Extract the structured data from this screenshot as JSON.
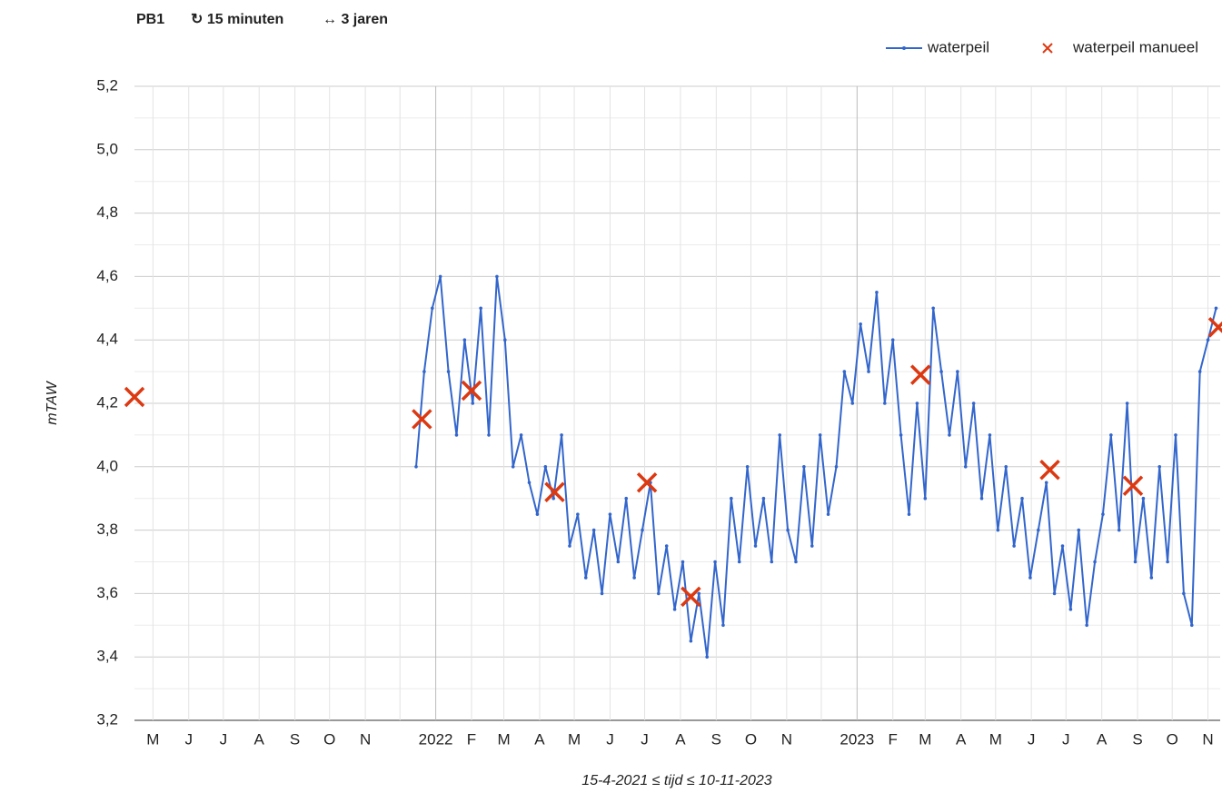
{
  "chart_data": {
    "type": "line",
    "title": "PB1",
    "subtitle_interval": "↻ 15 minuten",
    "subtitle_range": "↔ 3 jaren",
    "xlabel": "15-4-2021 ≤ tijd ≤ 10-11-2023",
    "ylabel": "mTAW",
    "xlim": [
      "2021-04-15",
      "2023-11-10"
    ],
    "ylim": [
      3.2,
      5.2
    ],
    "yticks": [
      {
        "value": 3.2,
        "label": "3,2"
      },
      {
        "value": 3.4,
        "label": "3,4"
      },
      {
        "value": 3.6,
        "label": "3,6"
      },
      {
        "value": 3.8,
        "label": "3,8"
      },
      {
        "value": 4.0,
        "label": "4,0"
      },
      {
        "value": 4.2,
        "label": "4,2"
      },
      {
        "value": 4.4,
        "label": "4,4"
      },
      {
        "value": 4.6,
        "label": "4,6"
      },
      {
        "value": 4.8,
        "label": "4,8"
      },
      {
        "value": 5.0,
        "label": "5,0"
      },
      {
        "value": 5.2,
        "label": "5,2"
      }
    ],
    "xticks": [
      {
        "value": "2021-05-01",
        "label": "M"
      },
      {
        "value": "2021-06-01",
        "label": "J"
      },
      {
        "value": "2021-07-01",
        "label": "J"
      },
      {
        "value": "2021-08-01",
        "label": "A"
      },
      {
        "value": "2021-09-01",
        "label": "S"
      },
      {
        "value": "2021-10-01",
        "label": "O"
      },
      {
        "value": "2021-11-01",
        "label": "N"
      },
      {
        "value": "2021-12-01",
        "label": ""
      },
      {
        "value": "2022-01-01",
        "label": "2022"
      },
      {
        "value": "2022-02-01",
        "label": "F"
      },
      {
        "value": "2022-03-01",
        "label": "M"
      },
      {
        "value": "2022-04-01",
        "label": "A"
      },
      {
        "value": "2022-05-01",
        "label": "M"
      },
      {
        "value": "2022-06-01",
        "label": "J"
      },
      {
        "value": "2022-07-01",
        "label": "J"
      },
      {
        "value": "2022-08-01",
        "label": "A"
      },
      {
        "value": "2022-09-01",
        "label": "S"
      },
      {
        "value": "2022-10-01",
        "label": "O"
      },
      {
        "value": "2022-11-01",
        "label": "N"
      },
      {
        "value": "2022-12-01",
        "label": ""
      },
      {
        "value": "2023-01-01",
        "label": "2023"
      },
      {
        "value": "2023-02-01",
        "label": "F"
      },
      {
        "value": "2023-03-01",
        "label": "M"
      },
      {
        "value": "2023-04-01",
        "label": "A"
      },
      {
        "value": "2023-05-01",
        "label": "M"
      },
      {
        "value": "2023-06-01",
        "label": "J"
      },
      {
        "value": "2023-07-01",
        "label": "J"
      },
      {
        "value": "2023-08-01",
        "label": "A"
      },
      {
        "value": "2023-09-01",
        "label": "S"
      },
      {
        "value": "2023-10-01",
        "label": "O"
      },
      {
        "value": "2023-11-01",
        "label": "N"
      }
    ],
    "grid": true,
    "legend": "top-right",
    "series": [
      {
        "name": "waterpeil",
        "color": "#3366cc",
        "marker": "line",
        "x": [
          "2021-12-15",
          "2021-12-22",
          "2021-12-29",
          "2022-01-05",
          "2022-01-12",
          "2022-01-19",
          "2022-01-26",
          "2022-02-02",
          "2022-02-09",
          "2022-02-16",
          "2022-02-23",
          "2022-03-02",
          "2022-03-09",
          "2022-03-16",
          "2022-03-23",
          "2022-03-30",
          "2022-04-06",
          "2022-04-13",
          "2022-04-20",
          "2022-04-27",
          "2022-05-04",
          "2022-05-11",
          "2022-05-18",
          "2022-05-25",
          "2022-06-01",
          "2022-06-08",
          "2022-06-15",
          "2022-06-22",
          "2022-06-29",
          "2022-07-06",
          "2022-07-13",
          "2022-07-20",
          "2022-07-27",
          "2022-08-03",
          "2022-08-10",
          "2022-08-17",
          "2022-08-24",
          "2022-08-31",
          "2022-09-07",
          "2022-09-14",
          "2022-09-21",
          "2022-09-28",
          "2022-10-05",
          "2022-10-12",
          "2022-10-19",
          "2022-10-26",
          "2022-11-02",
          "2022-11-09",
          "2022-11-16",
          "2022-11-23",
          "2022-11-30",
          "2022-12-07",
          "2022-12-14",
          "2022-12-21",
          "2022-12-28",
          "2023-01-04",
          "2023-01-11",
          "2023-01-18",
          "2023-01-25",
          "2023-02-01",
          "2023-02-08",
          "2023-02-15",
          "2023-02-22",
          "2023-03-01",
          "2023-03-08",
          "2023-03-15",
          "2023-03-22",
          "2023-03-29",
          "2023-04-05",
          "2023-04-12",
          "2023-04-19",
          "2023-04-26",
          "2023-05-03",
          "2023-05-10",
          "2023-05-17",
          "2023-05-24",
          "2023-05-31",
          "2023-06-07",
          "2023-06-14",
          "2023-06-21",
          "2023-06-28",
          "2023-07-05",
          "2023-07-12",
          "2023-07-19",
          "2023-07-26",
          "2023-08-02",
          "2023-08-09",
          "2023-08-16",
          "2023-08-23",
          "2023-08-30",
          "2023-09-06",
          "2023-09-13",
          "2023-09-20",
          "2023-09-27",
          "2023-10-04",
          "2023-10-11",
          "2023-10-18",
          "2023-10-25",
          "2023-11-01",
          "2023-11-08"
        ],
        "values": [
          4.0,
          4.3,
          4.5,
          4.6,
          4.3,
          4.1,
          4.4,
          4.2,
          4.5,
          4.1,
          4.6,
          4.4,
          4.0,
          4.1,
          3.95,
          3.85,
          4.0,
          3.9,
          4.1,
          3.75,
          3.85,
          3.65,
          3.8,
          3.6,
          3.85,
          3.7,
          3.9,
          3.65,
          3.8,
          3.95,
          3.6,
          3.75,
          3.55,
          3.7,
          3.45,
          3.6,
          3.4,
          3.7,
          3.5,
          3.9,
          3.7,
          4.0,
          3.75,
          3.9,
          3.7,
          4.1,
          3.8,
          3.7,
          4.0,
          3.75,
          4.1,
          3.85,
          4.0,
          4.3,
          4.2,
          4.45,
          4.3,
          4.55,
          4.2,
          4.4,
          4.1,
          3.85,
          4.2,
          3.9,
          4.5,
          4.3,
          4.1,
          4.3,
          4.0,
          4.2,
          3.9,
          4.1,
          3.8,
          4.0,
          3.75,
          3.9,
          3.65,
          3.8,
          3.95,
          3.6,
          3.75,
          3.55,
          3.8,
          3.5,
          3.7,
          3.85,
          4.1,
          3.8,
          4.2,
          3.7,
          3.9,
          3.65,
          4.0,
          3.7,
          4.1,
          3.6,
          3.5,
          4.3,
          4.4,
          4.5
        ]
      },
      {
        "name": "waterpeil manueel",
        "color": "#dc3912",
        "marker": "x",
        "x": [
          "2021-04-15",
          "2021-12-20",
          "2022-02-01",
          "2022-04-14",
          "2022-07-03",
          "2022-08-10",
          "2023-02-25",
          "2023-06-17",
          "2023-08-28",
          "2023-11-10"
        ],
        "values": [
          4.22,
          4.15,
          4.24,
          3.92,
          3.95,
          3.59,
          4.29,
          3.99,
          3.94,
          4.44
        ]
      }
    ]
  }
}
